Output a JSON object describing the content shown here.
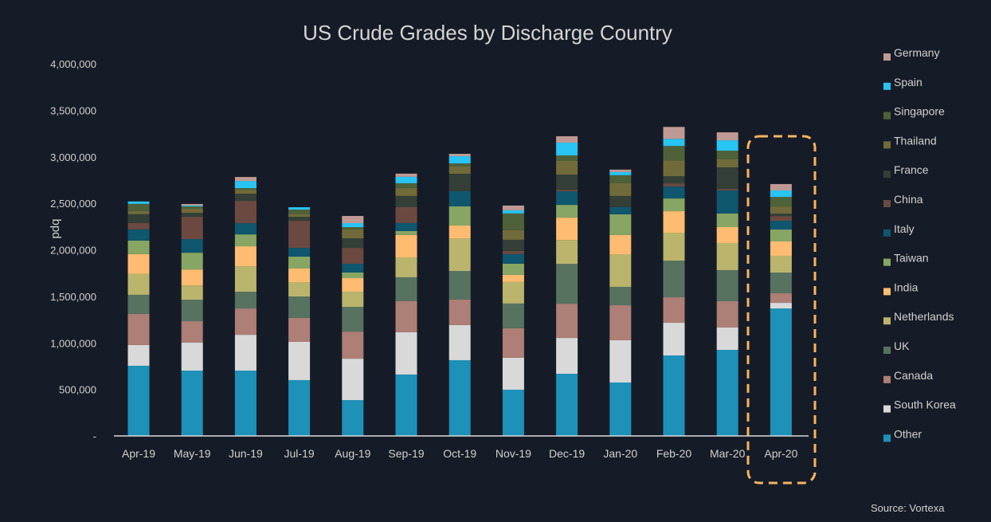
{
  "chart_data": {
    "type": "bar",
    "stacked": true,
    "title": "US Crude Grades by Discharge Country",
    "xlabel": "",
    "ylabel": "bpd",
    "ylim": [
      0,
      4000000
    ],
    "yticks": [
      0,
      500000,
      1000000,
      1500000,
      2000000,
      2500000,
      3000000,
      3500000,
      4000000
    ],
    "ytick_labels": [
      "-",
      "500,000",
      "1,000,000",
      "1,500,000",
      "2,000,000",
      "2,500,000",
      "3,000,000",
      "3,500,000",
      "4,000,000"
    ],
    "grid": false,
    "legend_position": "right",
    "highlight": {
      "category": "Apr-20",
      "style": "dashed rounded box",
      "color": "#f7b462"
    },
    "source": "Source:  Vortexa",
    "categories": [
      "Apr-19",
      "May-19",
      "Jun-19",
      "Jul-19",
      "Aug-19",
      "Sep-19",
      "Oct-19",
      "Nov-19",
      "Dec-19",
      "Jan-20",
      "Feb-20",
      "Mar-20",
      "Apr-20"
    ],
    "series": [
      {
        "name": "Other",
        "color": "#1d91b8",
        "values": [
          754000,
          702000,
          702000,
          600000,
          385000,
          660000,
          814000,
          497000,
          668000,
          574000,
          865000,
          925000,
          1370000
        ]
      },
      {
        "name": "South Korea",
        "color": "#d9d9d9",
        "values": [
          223000,
          300000,
          385000,
          411000,
          445000,
          454000,
          377000,
          343000,
          385000,
          454000,
          351000,
          240000,
          60000
        ]
      },
      {
        "name": "Canada",
        "color": "#ad7f76",
        "values": [
          334000,
          231000,
          283000,
          257000,
          291000,
          334000,
          274000,
          317000,
          368000,
          377000,
          274000,
          283000,
          103000
        ]
      },
      {
        "name": "UK",
        "color": "#587260",
        "values": [
          206000,
          231000,
          180000,
          231000,
          266000,
          257000,
          308000,
          266000,
          428000,
          197000,
          394000,
          334000,
          223000
        ]
      },
      {
        "name": "Netherlands",
        "color": "#bab46c",
        "values": [
          223000,
          154000,
          274000,
          154000,
          163000,
          214000,
          351000,
          231000,
          257000,
          351000,
          300000,
          291000,
          180000
        ]
      },
      {
        "name": "India",
        "color": "#fdbc71",
        "values": [
          214000,
          171000,
          214000,
          146000,
          146000,
          240000,
          137000,
          77000,
          240000,
          206000,
          231000,
          171000,
          154000
        ]
      },
      {
        "name": "Taiwan",
        "color": "#88a663",
        "values": [
          146000,
          180000,
          128000,
          128000,
          60000,
          43000,
          206000,
          120000,
          137000,
          223000,
          137000,
          146000,
          128000
        ]
      },
      {
        "name": "Italy",
        "color": "#0f566f",
        "values": [
          120000,
          146000,
          120000,
          94000,
          94000,
          86000,
          163000,
          103000,
          146000,
          77000,
          128000,
          248000,
          94000
        ]
      },
      {
        "name": "China",
        "color": "#6b4941",
        "values": [
          69000,
          240000,
          240000,
          291000,
          171000,
          171000,
          0,
          34000,
          17000,
          0,
          34000,
          17000,
          51000
        ]
      },
      {
        "name": "France",
        "color": "#333f37",
        "values": [
          94000,
          43000,
          77000,
          43000,
          103000,
          120000,
          188000,
          120000,
          163000,
          120000,
          77000,
          231000,
          26000
        ]
      },
      {
        "name": "Thailand",
        "color": "#716b3b",
        "values": [
          34000,
          43000,
          43000,
          26000,
          94000,
          86000,
          77000,
          103000,
          146000,
          137000,
          171000,
          86000,
          77000
        ]
      },
      {
        "name": "Singapore",
        "color": "#4f6139",
        "values": [
          77000,
          26000,
          17000,
          51000,
          26000,
          51000,
          34000,
          180000,
          60000,
          86000,
          154000,
          94000,
          103000
        ]
      },
      {
        "name": "Spain",
        "color": "#28c4f4",
        "values": [
          26000,
          9000,
          77000,
          26000,
          43000,
          69000,
          77000,
          34000,
          137000,
          34000,
          77000,
          111000,
          69000
        ]
      },
      {
        "name": "Germany",
        "color": "#bf9a94",
        "values": [
          0,
          17000,
          43000,
          0,
          77000,
          34000,
          26000,
          51000,
          69000,
          26000,
          128000,
          86000,
          69000
        ]
      }
    ],
    "legend_order": [
      "Germany",
      "Spain",
      "Singapore",
      "Thailand",
      "France",
      "China",
      "Italy",
      "Taiwan",
      "India",
      "Netherlands",
      "UK",
      "Canada",
      "South Korea",
      "Other"
    ]
  }
}
